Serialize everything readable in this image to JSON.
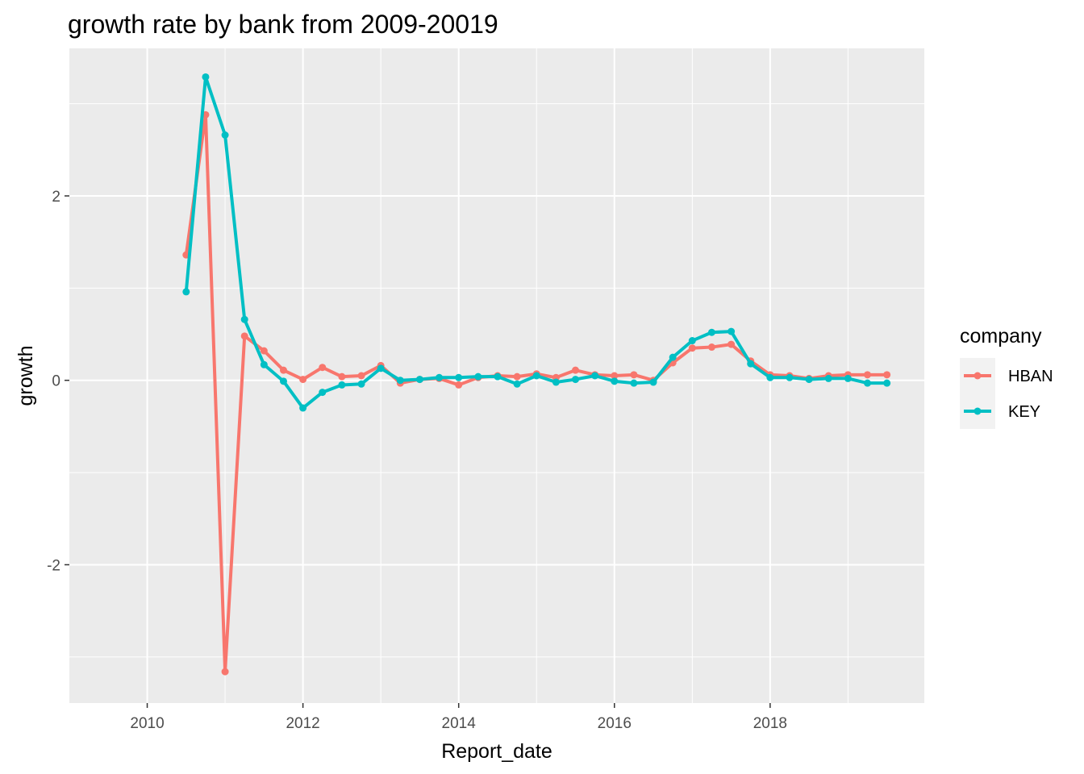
{
  "chart_data": {
    "type": "line",
    "title": "growth rate by bank from 2009-20019",
    "xlabel": "Report_date",
    "ylabel": "growth",
    "xlim": [
      2009.0,
      2019.98
    ],
    "ylim": [
      -3.5,
      3.6
    ],
    "x_ticks": [
      2010,
      2012,
      2014,
      2016,
      2018
    ],
    "x_tick_labels": [
      "2010",
      "2012",
      "2014",
      "2016",
      "2018"
    ],
    "y_ticks": [
      -2,
      0,
      2
    ],
    "y_tick_labels": [
      "-2",
      "0",
      "2"
    ],
    "grid": true,
    "legend_title": "company",
    "legend_position": "right",
    "x": [
      2010.5,
      2010.75,
      2011.0,
      2011.25,
      2011.5,
      2011.75,
      2012.0,
      2012.25,
      2012.5,
      2012.75,
      2013.0,
      2013.25,
      2013.5,
      2013.75,
      2014.0,
      2014.25,
      2014.5,
      2014.75,
      2015.0,
      2015.25,
      2015.5,
      2015.75,
      2016.0,
      2016.25,
      2016.5,
      2016.75,
      2017.0,
      2017.25,
      2017.5,
      2017.75,
      2018.0,
      2018.25,
      2018.5,
      2018.75,
      2019.0,
      2019.25,
      2019.5
    ],
    "series": [
      {
        "name": "HBAN",
        "color": "#F8766D",
        "values": [
          1.36,
          2.88,
          -3.16,
          0.48,
          0.32,
          0.11,
          0.01,
          0.14,
          0.04,
          0.05,
          0.16,
          -0.03,
          0.01,
          0.02,
          -0.05,
          0.03,
          0.05,
          0.04,
          0.07,
          0.03,
          0.11,
          0.06,
          0.05,
          0.06,
          0.0,
          0.19,
          0.35,
          0.36,
          0.39,
          0.21,
          0.06,
          0.05,
          0.02,
          0.05,
          0.06,
          0.06,
          0.06
        ]
      },
      {
        "name": "KEY",
        "color": "#00BFC4",
        "values": [
          0.96,
          3.29,
          2.66,
          0.66,
          0.17,
          -0.01,
          -0.3,
          -0.13,
          -0.05,
          -0.04,
          0.13,
          0.0,
          0.01,
          0.03,
          0.03,
          0.04,
          0.04,
          -0.04,
          0.05,
          -0.02,
          0.01,
          0.05,
          -0.01,
          -0.03,
          -0.02,
          0.25,
          0.43,
          0.52,
          0.53,
          0.18,
          0.03,
          0.03,
          0.01,
          0.02,
          0.02,
          -0.03,
          -0.03
        ]
      }
    ]
  }
}
